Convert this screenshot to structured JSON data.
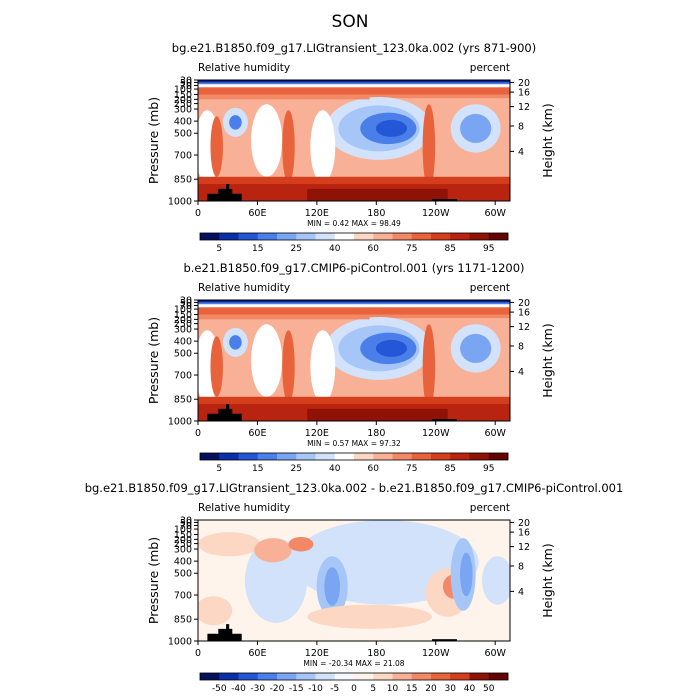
{
  "page_title": "SON",
  "chart_data": [
    {
      "type": "heatmap",
      "title": "bg.e21.B1850.f09_g17.LIGtransient_123.0ka.002 (yrs 871-900)",
      "variable_label": "Relative humidity",
      "units_label": "percent",
      "ylabel": "Pressure (mb)",
      "ylabel_right": "Height (km)",
      "x_ticks": [
        "0",
        "60E",
        "120E",
        "180",
        "120W",
        "60W"
      ],
      "y_ticks": [
        "30",
        "50",
        "70",
        "100",
        "150",
        "200",
        "250",
        "300",
        "400",
        "500",
        "700",
        "850",
        "1000"
      ],
      "y_ticks_right": [
        "20",
        "16",
        "12",
        "8",
        "4"
      ],
      "min_max_label": "MIN =    0.42   MAX =   98.49",
      "colorbar_labels": [
        "5",
        "15",
        "25",
        "40",
        "60",
        "75",
        "85",
        "95"
      ],
      "colorbar_colors": [
        "#05105e",
        "#0b2fa8",
        "#2457d6",
        "#4a7ee8",
        "#7aa5f2",
        "#a6c6f7",
        "#d2e2fb",
        "#ffffff",
        "#fcd8c4",
        "#f8b196",
        "#f28866",
        "#e8623c",
        "#d43e1c",
        "#b8240f",
        "#8e1206",
        "#630402"
      ]
    },
    {
      "type": "heatmap",
      "title": "b.e21.B1850.f09_g17.CMIP6-piControl.001 (yrs 1171-1200)",
      "variable_label": "Relative humidity",
      "units_label": "percent",
      "ylabel": "Pressure (mb)",
      "ylabel_right": "Height (km)",
      "x_ticks": [
        "0",
        "60E",
        "120E",
        "180",
        "120W",
        "60W"
      ],
      "y_ticks": [
        "30",
        "50",
        "70",
        "100",
        "150",
        "200",
        "250",
        "300",
        "400",
        "500",
        "700",
        "850",
        "1000"
      ],
      "y_ticks_right": [
        "20",
        "16",
        "12",
        "8",
        "4"
      ],
      "min_max_label": "MIN =    0.57   MAX =   97.32",
      "colorbar_labels": [
        "5",
        "15",
        "25",
        "40",
        "60",
        "75",
        "85",
        "95"
      ],
      "colorbar_colors": [
        "#05105e",
        "#0b2fa8",
        "#2457d6",
        "#4a7ee8",
        "#7aa5f2",
        "#a6c6f7",
        "#d2e2fb",
        "#ffffff",
        "#fcd8c4",
        "#f8b196",
        "#f28866",
        "#e8623c",
        "#d43e1c",
        "#b8240f",
        "#8e1206",
        "#630402"
      ]
    },
    {
      "type": "heatmap",
      "title": "bg.e21.B1850.f09_g17.LIGtransient_123.0ka.002 - b.e21.B1850.f09_g17.CMIP6-piControl.001",
      "variable_label": "Relative humidity",
      "units_label": "percent",
      "ylabel": "Pressure (mb)",
      "ylabel_right": "Height (km)",
      "x_ticks": [
        "0",
        "60E",
        "120E",
        "180",
        "120W",
        "60W"
      ],
      "y_ticks": [
        "30",
        "50",
        "70",
        "100",
        "150",
        "200",
        "250",
        "300",
        "400",
        "500",
        "700",
        "850",
        "1000"
      ],
      "y_ticks_right": [
        "20",
        "16",
        "12",
        "8",
        "4"
      ],
      "min_max_label": "MIN =  -20.34   MAX =   21.08",
      "colorbar_labels": [
        "-50",
        "-40",
        "-30",
        "-20",
        "-15",
        "-10",
        "-5",
        "0",
        "5",
        "10",
        "15",
        "20",
        "30",
        "40",
        "50"
      ],
      "colorbar_colors": [
        "#05105e",
        "#0b2fa8",
        "#2457d6",
        "#4a7ee8",
        "#7aa5f2",
        "#a6c6f7",
        "#d2e2fb",
        "#f5f9ff",
        "#fff4ec",
        "#fcd8c4",
        "#f8b196",
        "#f28866",
        "#e8623c",
        "#d43e1c",
        "#8e1206",
        "#630402"
      ]
    }
  ]
}
